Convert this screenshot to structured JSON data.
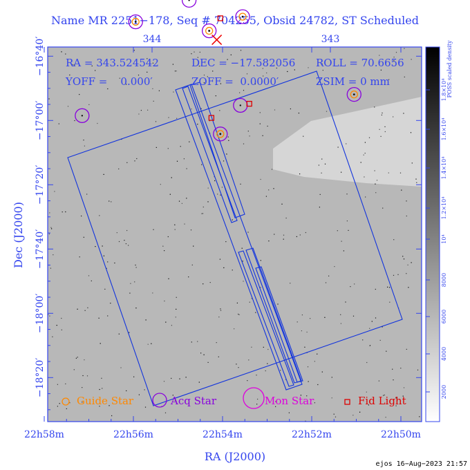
{
  "chart_data": {
    "type": "scatter",
    "title": "Name MR 2251−178, Seq # 704255, Obsid 24782, ST Scheduled",
    "xlabel": "RA (J2000)",
    "ylabel": "Dec (J2000)",
    "x_ticks_bottom": [
      "22h58m",
      "22h56m",
      "22h54m",
      "22h52m",
      "22h50m"
    ],
    "x_ticks_top": [
      "344",
      "343"
    ],
    "y_ticks": [
      "−16°40′",
      "−17°00′",
      "−17°20′",
      "−17°40′",
      "−18°00′",
      "−18°20′"
    ],
    "info_lines": {
      "ra": "RA = 343.524542",
      "dec": "DEC = −17.582056",
      "roll": "ROLL = 70.6656",
      "yoff": "YOFF =    0.000′",
      "zoff": "ZOFF =  0.0000′",
      "zsim": "ZSIM = 0 mm"
    },
    "colorbar": {
      "label": "POSS scaled density",
      "ticks": [
        "2000",
        "4000",
        "6000",
        "8000",
        "10⁴",
        "1.2×10⁴",
        "1.4×10⁴",
        "1.6×10⁴",
        "1.8×10⁴"
      ]
    },
    "legend": {
      "placement": "bottom",
      "entries": [
        {
          "label": "Guide Star",
          "color": "#ff8800"
        },
        {
          "label": "Acq Star",
          "color": "#8800dd"
        },
        {
          "label": "Mon Star",
          "color": "#dd00dd"
        },
        {
          "label": "Fid Light",
          "color": "#dd0000"
        }
      ]
    },
    "guide_stars": [
      {
        "ra_min": 55.95,
        "dec_arcmin": 29.3
      },
      {
        "ra_min": 54.3,
        "dec_arcmin": 32.1
      },
      {
        "ra_min": 53.55,
        "dec_arcmin": 27.7
      },
      {
        "ra_min": 54.05,
        "dec_arcmin": 64.2
      },
      {
        "ra_min": 51.05,
        "dec_arcmin": 51.9
      }
    ],
    "acq_only_stars": [
      {
        "ra_min": 54.75,
        "dec_arcmin": 22.6
      },
      {
        "ra_min": 53.6,
        "dec_arcmin": 55.3
      },
      {
        "ra_min": 57.15,
        "dec_arcmin": 58.5
      }
    ],
    "fid_lights": [
      {
        "ra_min": 54.05,
        "dec_arcmin": 28.2
      },
      {
        "ra_min": 53.4,
        "dec_arcmin": 54.8
      },
      {
        "ra_min": 54.25,
        "dec_arcmin": 59.2
      }
    ],
    "target": {
      "ra_min": 54.13,
      "dec_arcmin": 34.9
    },
    "colors": {
      "axis": "#3344ee",
      "box": "#1133dd",
      "guide": "#ff8800",
      "acq": "#8800dd",
      "mon": "#dd00dd",
      "fid": "#dd0000",
      "target": "#ee0000"
    }
  },
  "footer": "ejos 16−Aug−2023 21:57"
}
